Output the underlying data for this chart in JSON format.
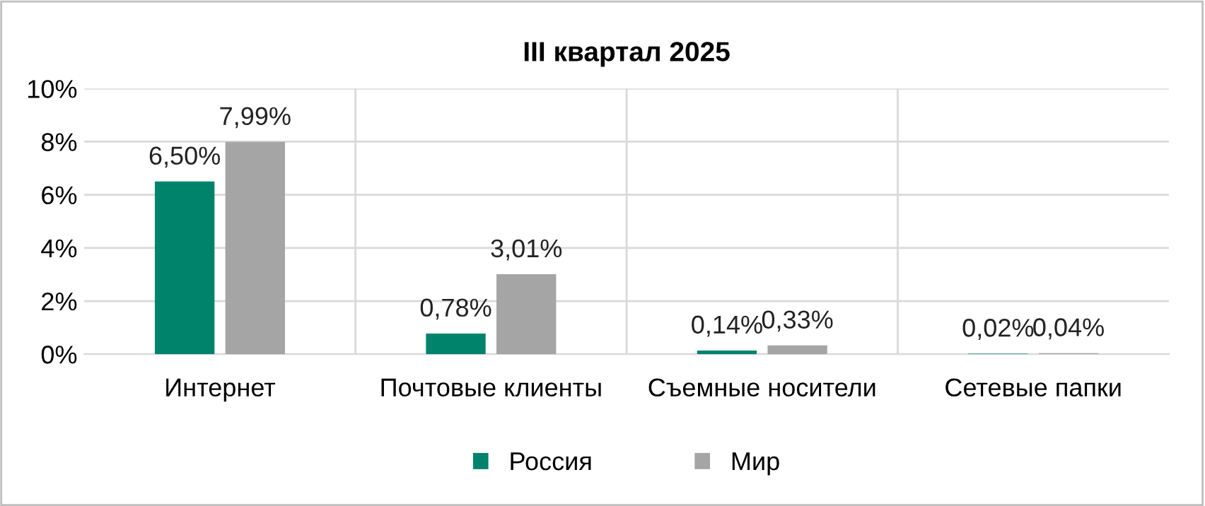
{
  "chart_data": {
    "type": "bar",
    "title": "III квартал 2025",
    "categories": [
      "Интернет",
      "Почтовые клиенты",
      "Съемные носители",
      "Сетевые папки"
    ],
    "series": [
      {
        "name": "Россия",
        "color": "#00836b",
        "values": [
          6.5,
          0.78,
          0.14,
          0.02
        ],
        "value_labels": [
          "6,50%",
          "0,78%",
          "0,14%",
          "0,02%"
        ]
      },
      {
        "name": "Мир",
        "color": "#a5a5a5",
        "values": [
          7.99,
          3.01,
          0.33,
          0.04
        ],
        "value_labels": [
          "7,99%",
          "3,01%",
          "0,33%",
          "0,04%"
        ]
      }
    ],
    "ylim": [
      0,
      10
    ],
    "yticks": [
      {
        "value": 0,
        "label": "0%"
      },
      {
        "value": 2,
        "label": "2%"
      },
      {
        "value": 4,
        "label": "4%"
      },
      {
        "value": 6,
        "label": "6%"
      },
      {
        "value": 8,
        "label": "8%"
      },
      {
        "value": 10,
        "label": "10%"
      }
    ],
    "grid": true,
    "legend": "bottom"
  }
}
